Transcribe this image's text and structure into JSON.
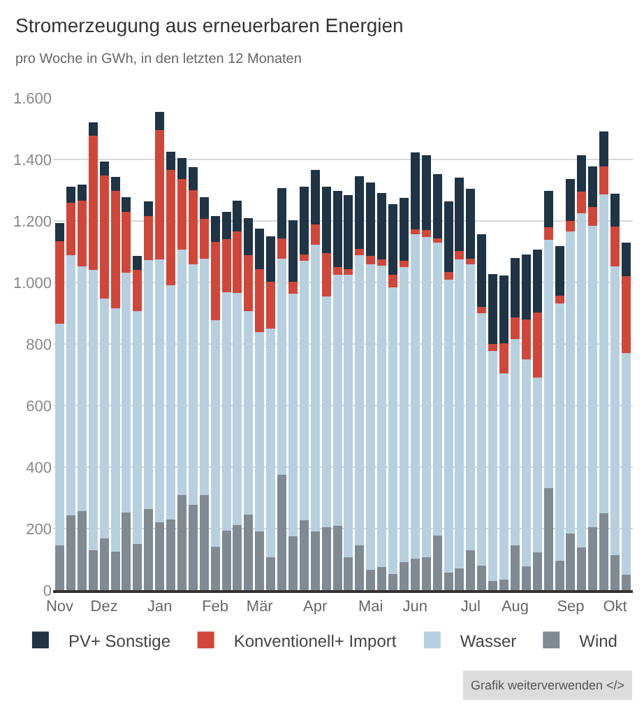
{
  "chart_data": {
    "type": "bar",
    "title": "Stromerzeugung aus erneuerbaren Energien",
    "subtitle": "pro Woche in GWh, in den letzten 12 Monaten",
    "categories": [
      "Nov",
      null,
      null,
      null,
      "Dez",
      null,
      null,
      null,
      null,
      "Jan",
      null,
      null,
      null,
      null,
      "Feb",
      null,
      null,
      null,
      "Mär",
      null,
      null,
      null,
      null,
      "Apr",
      null,
      null,
      null,
      null,
      "Mai",
      null,
      null,
      null,
      "Jun",
      null,
      null,
      null,
      null,
      "Jul",
      null,
      null,
      null,
      "Aug",
      null,
      null,
      null,
      null,
      "Sep",
      null,
      null,
      null,
      "Okt",
      null
    ],
    "stacked": true,
    "series": [
      {
        "name": "Wind",
        "color": "#7f8a93",
        "values": [
          146,
          244,
          256,
          129,
          168,
          126,
          253,
          149,
          263,
          221,
          229,
          308,
          278,
          308,
          141,
          193,
          211,
          245,
          190,
          107,
          376,
          175,
          227,
          190,
          205,
          209,
          107,
          146,
          65,
          76,
          53,
          92,
          102,
          107,
          178,
          56,
          71,
          129,
          80,
          30,
          34,
          146,
          77,
          122,
          331,
          95,
          183,
          138,
          204,
          250,
          113,
          51
        ]
      },
      {
        "name": "Wasser",
        "color": "#b7d0e0",
        "values": [
          719,
          845,
          797,
          911,
          780,
          789,
          778,
          757,
          810,
          853,
          762,
          799,
          780,
          769,
          736,
          776,
          755,
          661,
          648,
          744,
          701,
          788,
          843,
          933,
          750,
          815,
          917,
          943,
          993,
          979,
          930,
          958,
          1055,
          1040,
          951,
          954,
          1005,
          929,
          819,
          747,
          670,
          671,
          673,
          570,
          807,
          836,
          982,
          1088,
          980,
          1037,
          940,
          719
        ]
      },
      {
        "name": "Konventionell+ Import",
        "color": "#d0473a",
        "values": [
          270,
          171,
          214,
          437,
          399,
          382,
          198,
          134,
          142,
          422,
          376,
          230,
          243,
          129,
          255,
          172,
          199,
          183,
          205,
          152,
          67,
          40,
          20,
          65,
          141,
          26,
          19,
          21,
          29,
          19,
          41,
          20,
          15,
          24,
          15,
          23,
          26,
          19,
          22,
          22,
          98,
          70,
          129,
          211,
          42,
          26,
          35,
          69,
          62,
          90,
          128,
          251
        ]
      },
      {
        "name": "PV+ Sonstige",
        "color": "#1f3444",
        "values": [
          59,
          52,
          52,
          44,
          46,
          46,
          49,
          47,
          48,
          59,
          59,
          67,
          73,
          72,
          83,
          89,
          101,
          120,
          131,
          148,
          163,
          199,
          222,
          179,
          216,
          247,
          242,
          236,
          237,
          218,
          231,
          205,
          250,
          242,
          208,
          230,
          238,
          227,
          236,
          228,
          220,
          193,
          211,
          204,
          117,
          162,
          136,
          118,
          131,
          115,
          107,
          108
        ]
      }
    ],
    "ylim": [
      0,
      1600
    ],
    "yticks": [
      0,
      200,
      400,
      600,
      800,
      {
        "value": 1000,
        "label": "1.000"
      },
      {
        "value": 1200,
        "label": "1.200"
      },
      {
        "value": 1400,
        "label": "1.400"
      },
      {
        "value": 1600,
        "label": "1.600"
      }
    ],
    "grid": "y",
    "legend": "bottom",
    "annotations": [
      "Grafik weiterverwenden </>"
    ]
  }
}
